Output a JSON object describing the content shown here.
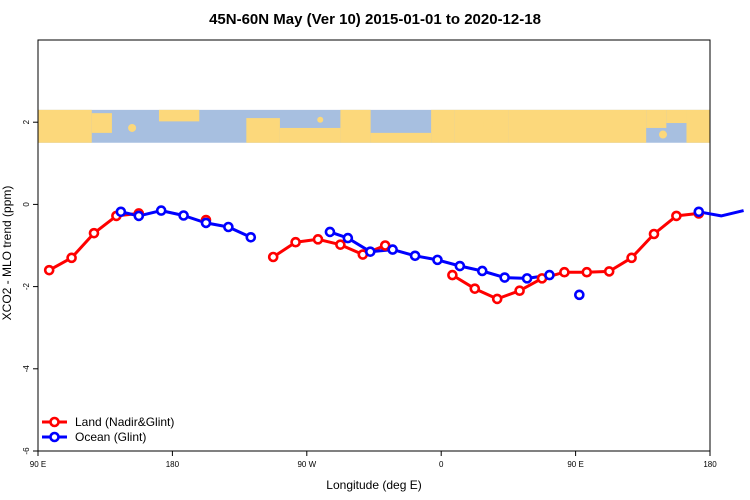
{
  "chart_data": {
    "type": "line",
    "title": "45N-60N May (Ver 10)   2015-01-01 to 2020-12-18",
    "xlabel": "Longitude (deg E)",
    "ylabel": "XCO2 - MLO trend (ppm)",
    "xlim": [
      90,
      540
    ],
    "ylim": [
      -6,
      4
    ],
    "x_ticks": [
      {
        "value": 90,
        "label": "90 E"
      },
      {
        "value": 180,
        "label": "180"
      },
      {
        "value": 270,
        "label": "90 W"
      },
      {
        "value": 360,
        "label": "0"
      },
      {
        "value": 450,
        "label": "90 E"
      },
      {
        "value": 540,
        "label": "180"
      }
    ],
    "y_ticks": [
      {
        "value": 2,
        "label": "2"
      },
      {
        "value": 0,
        "label": "0"
      },
      {
        "value": -2,
        "label": "-2"
      },
      {
        "value": -4,
        "label": "-4"
      },
      {
        "value": -6,
        "label": "-6"
      }
    ],
    "grid": false,
    "legend_position": "bottom-left",
    "map_strip": {
      "y_range": [
        1.5,
        2.3
      ],
      "land_color": "#fcd87b",
      "ocean_color": "#a7bfe0"
    },
    "series": [
      {
        "name": "Land (Nadir&Glint)",
        "color": "#ff0000",
        "segments": [
          [
            [
              97.5,
              -1.6
            ],
            [
              112.5,
              -1.3
            ],
            [
              127.5,
              -0.7
            ],
            [
              142.5,
              -0.28
            ],
            [
              157.5,
              -0.22
            ]
          ],
          [
            [
              202.5,
              -0.38
            ]
          ],
          [
            [
              247.5,
              -1.28
            ],
            [
              262.5,
              -0.92
            ],
            [
              277.5,
              -0.85
            ],
            [
              292.5,
              -0.98
            ],
            [
              307.5,
              -1.22
            ],
            [
              322.5,
              -1.0
            ]
          ],
          [
            [
              367.5,
              -1.72
            ],
            [
              382.5,
              -2.05
            ],
            [
              397.5,
              -2.3
            ],
            [
              412.5,
              -2.1
            ],
            [
              427.5,
              -1.8
            ],
            [
              442.5,
              -1.65
            ],
            [
              457.5,
              -1.65
            ],
            [
              472.5,
              -1.63
            ],
            [
              487.5,
              -1.3
            ],
            [
              502.5,
              -0.72
            ],
            [
              517.5,
              -0.28
            ],
            [
              532.5,
              -0.22
            ]
          ]
        ]
      },
      {
        "name": "Ocean (Glint)",
        "color": "#0000ff",
        "segments": [
          [
            [
              145.5,
              -0.18
            ],
            [
              157.5,
              -0.28
            ],
            [
              172.5,
              -0.15
            ],
            [
              187.5,
              -0.27
            ],
            [
              202.5,
              -0.45
            ],
            [
              217.5,
              -0.55
            ],
            [
              232.5,
              -0.8
            ]
          ],
          [
            [
              285.5,
              -0.67
            ],
            [
              297.5,
              -0.82
            ],
            [
              312.5,
              -1.15
            ],
            [
              327.5,
              -1.1
            ],
            [
              342.5,
              -1.25
            ],
            [
              357.5,
              -1.35
            ],
            [
              372.5,
              -1.5
            ],
            [
              387.5,
              -1.62
            ],
            [
              402.5,
              -1.78
            ],
            [
              417.5,
              -1.8
            ],
            [
              432.5,
              -1.72
            ]
          ],
          [
            [
              452.5,
              -2.2
            ]
          ],
          [
            [
              532.5,
              -0.18
            ],
            [
              547.5,
              -0.28
            ],
            [
              562.5,
              -0.15
            ]
          ]
        ]
      }
    ]
  }
}
